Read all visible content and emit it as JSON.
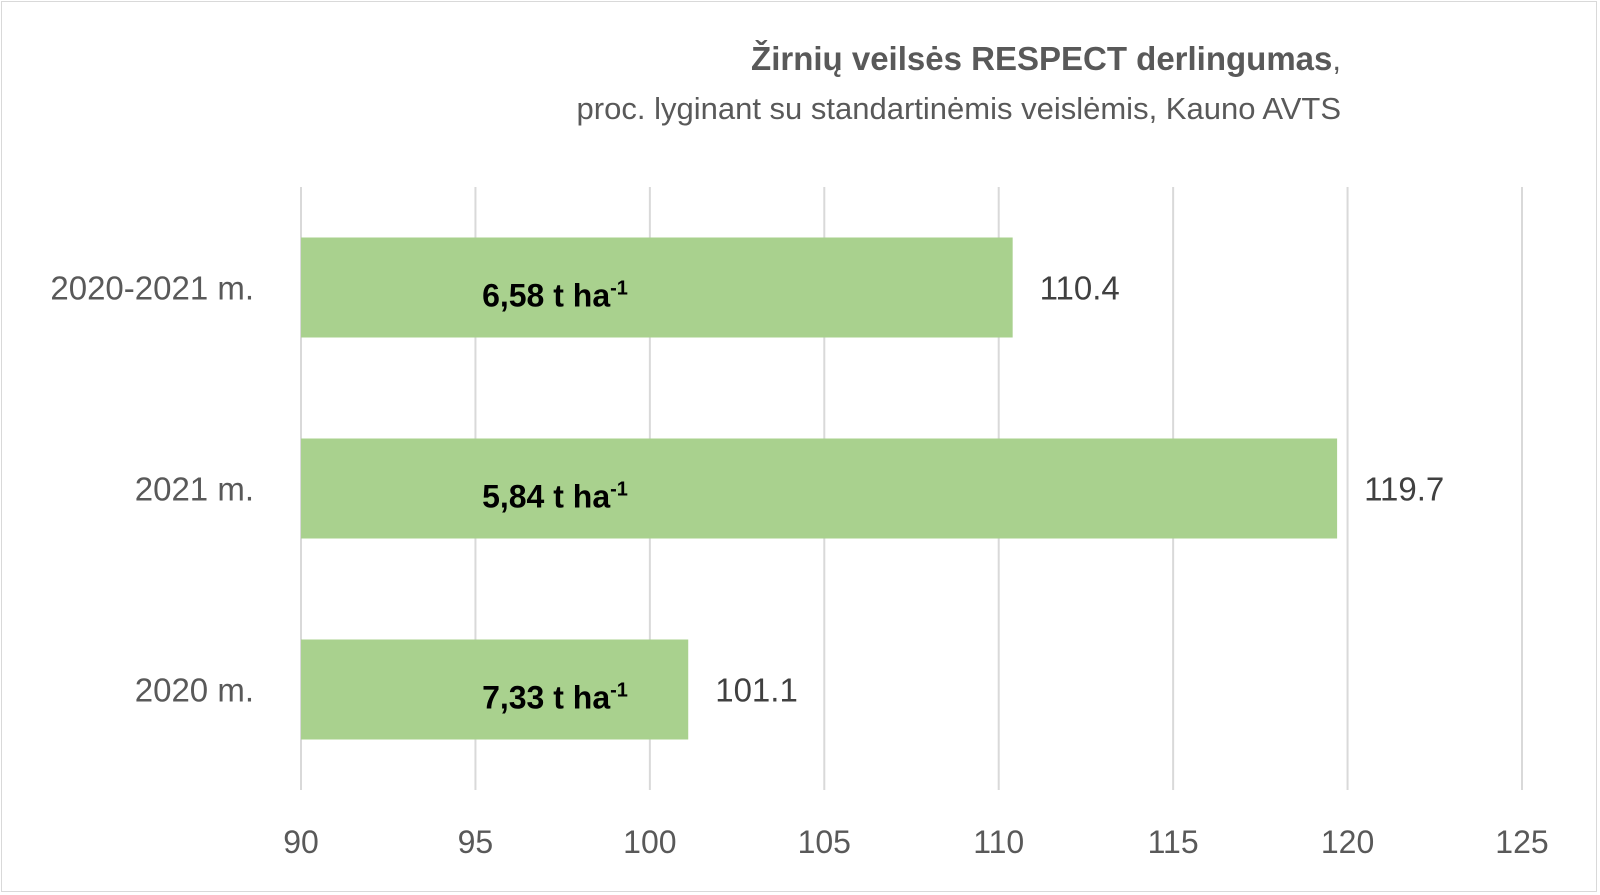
{
  "chart_data": {
    "type": "bar",
    "orientation": "horizontal",
    "title": "Žirnių veilsės RESPECT derlingumas",
    "title_suffix": ",",
    "subtitle": "proc. lyginant su standartinėmis veislėmis, Kauno AVTS",
    "categories": [
      "2020-2021 m.",
      "2021 m.",
      "2020 m."
    ],
    "values": [
      110.4,
      119.7,
      101.1
    ],
    "value_labels": [
      "110.4",
      "119.7",
      "101.1"
    ],
    "inner_labels": [
      {
        "base": "6,58 t ha",
        "sup": "-1"
      },
      {
        "base": "5,84 t ha",
        "sup": "-1"
      },
      {
        "base": "7,33 t ha",
        "sup": "-1"
      }
    ],
    "xlim": [
      90,
      125
    ],
    "xticks": [
      90,
      95,
      100,
      105,
      110,
      115,
      120,
      125
    ],
    "grid": true,
    "legend": "none",
    "bar_color": "#a9d18e",
    "grid_color": "#d9d9d9"
  }
}
